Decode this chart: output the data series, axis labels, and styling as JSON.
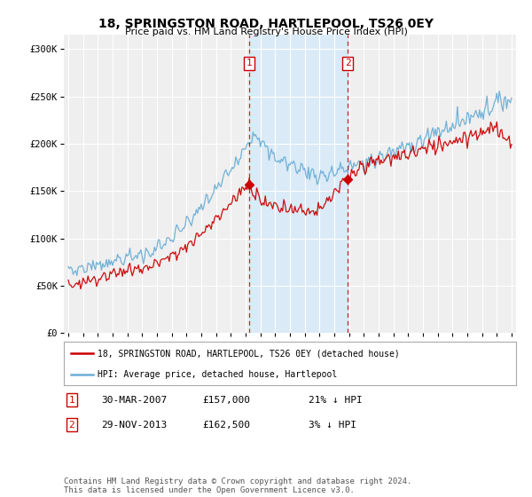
{
  "title": "18, SPRINGSTON ROAD, HARTLEPOOL, TS26 0EY",
  "subtitle": "Price paid vs. HM Land Registry's House Price Index (HPI)",
  "ylabel_ticks": [
    "£0",
    "£50K",
    "£100K",
    "£150K",
    "£200K",
    "£250K",
    "£300K"
  ],
  "ytick_values": [
    0,
    50000,
    100000,
    150000,
    200000,
    250000,
    300000
  ],
  "ylim": [
    0,
    315000
  ],
  "hpi_color": "#6baed6",
  "price_color": "#cc0000",
  "shade_color": "#daeaf6",
  "vline_color": "#cc0000",
  "transaction1": {
    "date": "30-MAR-2007",
    "price": "£157,000",
    "label": "21% ↓ HPI",
    "num": "1",
    "year": 2007.23
  },
  "transaction2": {
    "date": "29-NOV-2013",
    "price": "£162,500",
    "label": "3% ↓ HPI",
    "num": "2",
    "year": 2013.91
  },
  "legend_line1": "18, SPRINGSTON ROAD, HARTLEPOOL, TS26 0EY (detached house)",
  "legend_line2": "HPI: Average price, detached house, Hartlepool",
  "footnote": "Contains HM Land Registry data © Crown copyright and database right 2024.\nThis data is licensed under the Open Government Licence v3.0.",
  "background_color": "#ffffff"
}
